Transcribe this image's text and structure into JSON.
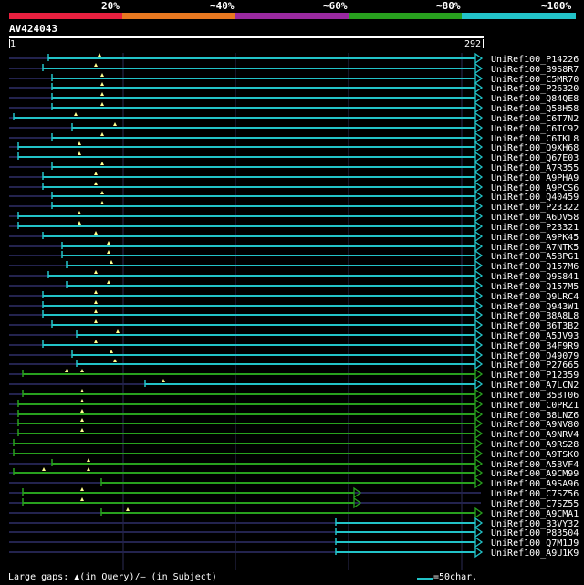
{
  "legend": {
    "labels": [
      "20%",
      "~40%",
      "~60%",
      "~80%",
      "~100%"
    ],
    "colors": [
      "#e8203f",
      "#e87820",
      "#9a2aa0",
      "#28a01e",
      "#22c3c8"
    ]
  },
  "query": {
    "id": "AV424043",
    "start": "1",
    "end": "292"
  },
  "hits": [
    {
      "name": "UniRef100_P14226",
      "s": 53,
      "e": 521,
      "c": "cyan",
      "g": [
        109
      ],
      "a": 1
    },
    {
      "name": "UniRef100_B9S8R7",
      "s": 47,
      "e": 521,
      "c": "cyan",
      "g": [
        105
      ],
      "a": 1
    },
    {
      "name": "UniRef100_C5MR70",
      "s": 57,
      "e": 521,
      "c": "cyan",
      "g": [
        112
      ],
      "a": 1
    },
    {
      "name": "UniRef100_P26320",
      "s": 57,
      "e": 521,
      "c": "cyan",
      "g": [
        112
      ],
      "a": 1
    },
    {
      "name": "UniRef100_Q84QE8",
      "s": 57,
      "e": 521,
      "c": "cyan",
      "g": [
        112
      ],
      "a": 1
    },
    {
      "name": "UniRef100_Q58H58",
      "s": 57,
      "e": 521,
      "c": "cyan",
      "g": [
        112
      ],
      "a": 1
    },
    {
      "name": "UniRef100_C6T7N2",
      "s": 15,
      "e": 521,
      "c": "cyan",
      "g": [
        83
      ],
      "a": 1
    },
    {
      "name": "UniRef100_C6TC92",
      "s": 79,
      "e": 521,
      "c": "cyan",
      "g": [
        126
      ],
      "a": 1
    },
    {
      "name": "UniRef100_C6TKL8",
      "s": 57,
      "e": 521,
      "c": "cyan",
      "g": [
        112
      ],
      "a": 1
    },
    {
      "name": "UniRef100_Q9XH68",
      "s": 20,
      "e": 521,
      "c": "cyan",
      "g": [
        87
      ],
      "a": 1
    },
    {
      "name": "UniRef100_Q67E03",
      "s": 20,
      "e": 521,
      "c": "cyan",
      "g": [
        87
      ],
      "a": 1
    },
    {
      "name": "UniRef100_A7R355",
      "s": 57,
      "e": 521,
      "c": "cyan",
      "g": [
        112
      ],
      "a": 1
    },
    {
      "name": "UniRef100_A9PHA9",
      "s": 47,
      "e": 521,
      "c": "cyan",
      "g": [
        105
      ],
      "a": 1
    },
    {
      "name": "UniRef100_A9PCS6",
      "s": 47,
      "e": 521,
      "c": "cyan",
      "g": [
        105
      ],
      "a": 1
    },
    {
      "name": "UniRef100_Q40459",
      "s": 57,
      "e": 521,
      "c": "cyan",
      "g": [
        112
      ],
      "a": 1
    },
    {
      "name": "UniRef100_P23322",
      "s": 57,
      "e": 521,
      "c": "cyan",
      "g": [
        112
      ],
      "a": 1
    },
    {
      "name": "UniRef100_A6DV58",
      "s": 20,
      "e": 521,
      "c": "cyan",
      "g": [
        87
      ],
      "a": 1
    },
    {
      "name": "UniRef100_P23321",
      "s": 20,
      "e": 521,
      "c": "cyan",
      "g": [
        87
      ],
      "a": 1
    },
    {
      "name": "UniRef100_A9PK45",
      "s": 47,
      "e": 521,
      "c": "cyan",
      "g": [
        105
      ],
      "a": 1
    },
    {
      "name": "UniRef100_A7NTK5",
      "s": 68,
      "e": 521,
      "c": "cyan",
      "g": [
        119
      ],
      "a": 1
    },
    {
      "name": "UniRef100_A5BPG1",
      "s": 68,
      "e": 521,
      "c": "cyan",
      "g": [
        119
      ],
      "a": 1
    },
    {
      "name": "UniRef100_Q157M6",
      "s": 73,
      "e": 521,
      "c": "cyan",
      "g": [
        122
      ],
      "a": 1
    },
    {
      "name": "UniRef100_Q9S841",
      "s": 53,
      "e": 521,
      "c": "cyan",
      "g": [
        105
      ],
      "a": 1
    },
    {
      "name": "UniRef100_Q157M5",
      "s": 73,
      "e": 521,
      "c": "cyan",
      "g": [
        119
      ],
      "a": 1
    },
    {
      "name": "UniRef100_Q9LRC4",
      "s": 47,
      "e": 521,
      "c": "cyan",
      "g": [
        105
      ],
      "a": 1
    },
    {
      "name": "UniRef100_Q943W1",
      "s": 47,
      "e": 521,
      "c": "cyan",
      "g": [
        105
      ],
      "a": 1
    },
    {
      "name": "UniRef100_B8A8L8",
      "s": 47,
      "e": 521,
      "c": "cyan",
      "g": [
        105
      ],
      "a": 1
    },
    {
      "name": "UniRef100_B6T3B2",
      "s": 57,
      "e": 521,
      "c": "cyan",
      "g": [
        105
      ],
      "a": 1
    },
    {
      "name": "UniRef100_A5JV93",
      "s": 84,
      "e": 521,
      "c": "cyan",
      "g": [
        129
      ],
      "a": 1
    },
    {
      "name": "UniRef100_B4F9R9",
      "s": 47,
      "e": 521,
      "c": "cyan",
      "g": [
        105
      ],
      "a": 1
    },
    {
      "name": "UniRef100_O49079",
      "s": 79,
      "e": 521,
      "c": "cyan",
      "g": [
        122
      ],
      "a": 1
    },
    {
      "name": "UniRef100_P27665",
      "s": 84,
      "e": 521,
      "c": "cyan",
      "g": [
        126
      ],
      "a": 1
    },
    {
      "name": "UniRef100_P12359",
      "s": 25,
      "e": 521,
      "c": "green",
      "g": [
        73,
        90
      ],
      "a": 1
    },
    {
      "name": "UniRef100_A7LCN2",
      "s": 159,
      "e": 521,
      "c": "cyan",
      "g": [
        179
      ],
      "a": 1
    },
    {
      "name": "UniRef100_B5BT06",
      "s": 25,
      "e": 521,
      "c": "green",
      "g": [
        90
      ],
      "a": 1
    },
    {
      "name": "UniRef100_C0PRZ1",
      "s": 20,
      "e": 521,
      "c": "green",
      "g": [
        90
      ],
      "a": 1
    },
    {
      "name": "UniRef100_B8LNZ6",
      "s": 20,
      "e": 521,
      "c": "green",
      "g": [
        90
      ],
      "a": 1
    },
    {
      "name": "UniRef100_A9NV80",
      "s": 20,
      "e": 521,
      "c": "green",
      "g": [
        90
      ],
      "a": 1
    },
    {
      "name": "UniRef100_A9NRV4",
      "s": 20,
      "e": 521,
      "c": "green",
      "g": [
        90
      ],
      "a": 1
    },
    {
      "name": "UniRef100_A9RS28",
      "s": 15,
      "e": 521,
      "c": "green",
      "g": [],
      "a": 1
    },
    {
      "name": "UniRef100_A9TSK0",
      "s": 15,
      "e": 521,
      "c": "green",
      "g": [],
      "a": 1
    },
    {
      "name": "UniRef100_A5BVF4",
      "s": 57,
      "e": 521,
      "c": "green",
      "g": [
        97
      ],
      "a": 1
    },
    {
      "name": "UniRef100_A9CM99",
      "s": 15,
      "e": 521,
      "c": "green",
      "g": [
        48,
        97
      ],
      "a": 1
    },
    {
      "name": "UniRef100_A9SA96",
      "s": 111,
      "e": 521,
      "c": "green",
      "g": [],
      "a": 1
    },
    {
      "name": "UniRef100_C7SZ56",
      "s": 25,
      "e": 388,
      "c": "green",
      "g": [
        90
      ],
      "a": 1
    },
    {
      "name": "UniRef100_C7SZ55",
      "s": 25,
      "e": 388,
      "c": "green",
      "g": [
        90
      ],
      "a": 1
    },
    {
      "name": "UniRef100_A9CMA1",
      "s": 111,
      "e": 521,
      "c": "green",
      "g": [
        140
      ],
      "a": 1
    },
    {
      "name": "UniRef100_B3VY32",
      "s": 368,
      "e": 521,
      "c": "cyan",
      "g": [],
      "a": 1
    },
    {
      "name": "UniRef100_P83504",
      "s": 368,
      "e": 521,
      "c": "cyan",
      "g": [],
      "a": 1
    },
    {
      "name": "UniRef100_Q7M1J9",
      "s": 368,
      "e": 521,
      "c": "cyan",
      "g": [],
      "a": 1
    },
    {
      "name": "UniRef100_A9U1K9",
      "s": 368,
      "e": 521,
      "c": "cyan",
      "g": [],
      "a": 1
    }
  ],
  "footer": {
    "gaps_label": "Large gaps: ▲(in Query)/— (in Subject)",
    "scale_label": "=50char."
  }
}
